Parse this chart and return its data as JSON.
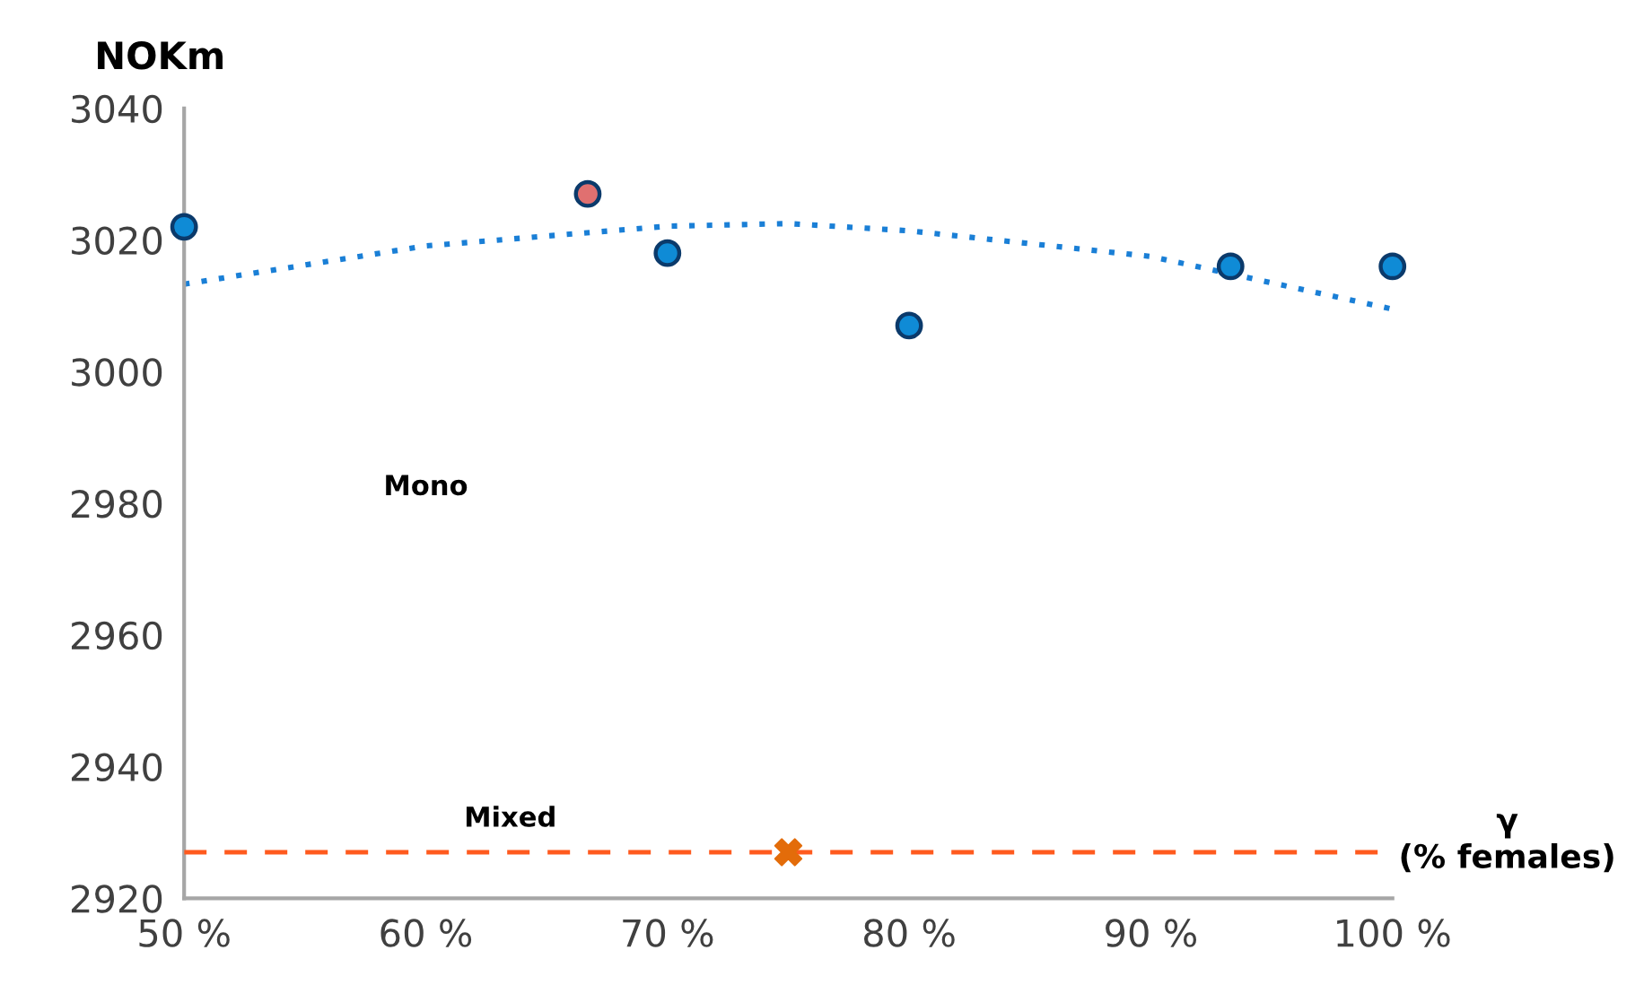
{
  "chart_data": {
    "type": "scatter",
    "ylabel": "NOKm",
    "xlabel": "γ\n(% females)",
    "xlim": [
      50,
      100
    ],
    "xticks": [
      {
        "value": 50,
        "label": "50 %"
      },
      {
        "value": 60,
        "label": "60 %"
      },
      {
        "value": 70,
        "label": "70 %"
      },
      {
        "value": 80,
        "label": "80 %"
      },
      {
        "value": 90,
        "label": "90 %"
      },
      {
        "value": 100,
        "label": "100 %"
      }
    ],
    "ylim": [
      2920,
      3040
    ],
    "yticks": [
      2920,
      2940,
      2960,
      2980,
      3000,
      3020,
      3040
    ],
    "grid": false,
    "legend": false,
    "series": [
      {
        "type": "line",
        "color": "#1a7fd6",
        "line_style": "dotted",
        "marker": "none",
        "x": [
          50,
          60,
          70,
          75,
          80,
          90,
          100
        ],
        "values": [
          3013.3,
          3019.1,
          3022.1,
          3022.5,
          3021.4,
          3017.5,
          3009.5
        ]
      },
      {
        "color": "#0f8bd6",
        "marker": "circle",
        "x": [
          50,
          70,
          80,
          93.3,
          100
        ],
        "values": [
          3022,
          3018,
          3007,
          3016,
          3016
        ]
      },
      {
        "color": "#e07070",
        "marker": "circle",
        "x": [
          66.7
        ],
        "values": [
          3027
        ]
      },
      {
        "color": "#e36c0a",
        "marker": "cross",
        "x": [
          75
        ],
        "values": [
          2927
        ]
      }
    ],
    "ref_lines": [
      {
        "axis": "y",
        "value": 2927,
        "label": "Mixed",
        "color": "#ff5a1e",
        "line_style": "dashed"
      }
    ],
    "annotations": [
      "Mono"
    ]
  }
}
